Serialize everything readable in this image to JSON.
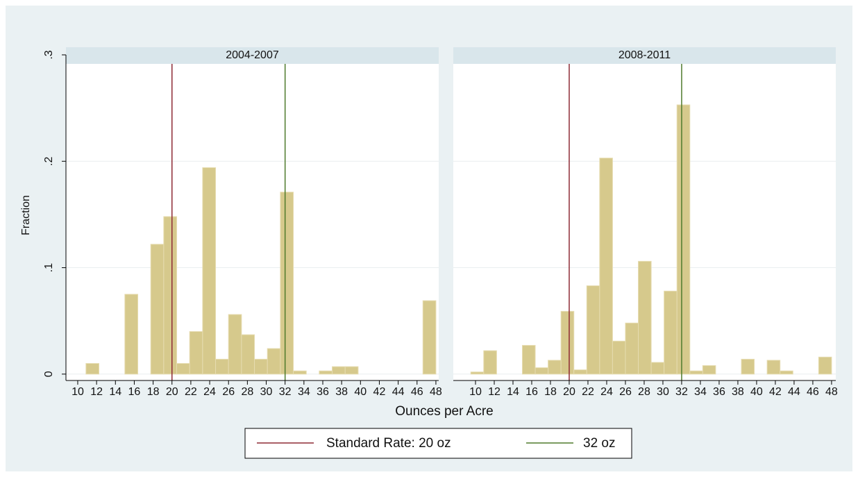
{
  "chart_data": {
    "type": "histogram",
    "y_label": "Fraction",
    "x_label": "Ounces per Acre",
    "grid": true,
    "reference_lines": [
      {
        "name": "Standard Rate: 20 oz",
        "color": "#8e2a35",
        "value": 20
      },
      {
        "name": "32 oz",
        "color": "#4e7a2c",
        "value": 32
      }
    ],
    "panels": [
      {
        "title": "2004-2007",
        "color": "#d6c98c",
        "bins": [
          9.5,
          10.875,
          12.25,
          13.625,
          15,
          16.375,
          17.75,
          19.125,
          20.5,
          21.875,
          23.25,
          24.625,
          26,
          27.375,
          28.75,
          30.125,
          31.5,
          32.875,
          34.25,
          35.625,
          37,
          38.375,
          39.75,
          41.125,
          42.5,
          43.875,
          45.25,
          46.625,
          48
        ],
        "values": [
          0,
          0.01,
          0,
          0,
          0.075,
          0,
          0.122,
          0.148,
          0.01,
          0.04,
          0.194,
          0.014,
          0.056,
          0.037,
          0.014,
          0.024,
          0.171,
          0.003,
          0,
          0.003,
          0.007,
          0.007,
          0,
          0,
          0,
          0,
          0,
          0.069
        ],
        "xlim": [
          8.75,
          48.3
        ],
        "xticks": [
          10,
          12,
          14,
          16,
          18,
          20,
          22,
          24,
          26,
          28,
          30,
          32,
          34,
          36,
          38,
          40,
          42,
          44,
          46,
          48
        ],
        "ylim": [
          -0.006,
          0.3
        ],
        "yticks": [
          {
            "value": 0,
            "label": "0"
          },
          {
            "value": 0.1,
            "label": ".1"
          },
          {
            "value": 0.2,
            "label": ".2"
          },
          {
            "value": 0.3,
            "label": ".3"
          }
        ]
      },
      {
        "title": "2008-2011",
        "color": "#d6c98c",
        "bins": [
          9.5,
          10.875,
          12.25,
          13.625,
          15,
          16.375,
          17.75,
          19.125,
          20.5,
          21.875,
          23.25,
          24.625,
          26,
          27.375,
          28.75,
          30.125,
          31.5,
          32.875,
          34.25,
          35.625,
          37,
          38.375,
          39.75,
          41.125,
          42.5,
          43.875,
          45.25,
          46.625,
          48
        ],
        "values": [
          0.002,
          0.022,
          0,
          0,
          0.027,
          0.006,
          0.013,
          0.059,
          0.004,
          0.083,
          0.203,
          0.031,
          0.048,
          0.106,
          0.011,
          0.078,
          0.253,
          0.003,
          0.008,
          0,
          0,
          0.014,
          0,
          0.013,
          0.003,
          0,
          0,
          0.016
        ],
        "xlim": [
          7.63,
          48.45
        ],
        "xticks": [
          10,
          12,
          14,
          16,
          18,
          20,
          22,
          24,
          26,
          28,
          30,
          32,
          34,
          36,
          38,
          40,
          42,
          44,
          46,
          48
        ],
        "ylim": [
          -0.006,
          0.3
        ],
        "yticks": [
          0,
          0.1,
          0.2,
          0.3
        ]
      }
    ]
  }
}
